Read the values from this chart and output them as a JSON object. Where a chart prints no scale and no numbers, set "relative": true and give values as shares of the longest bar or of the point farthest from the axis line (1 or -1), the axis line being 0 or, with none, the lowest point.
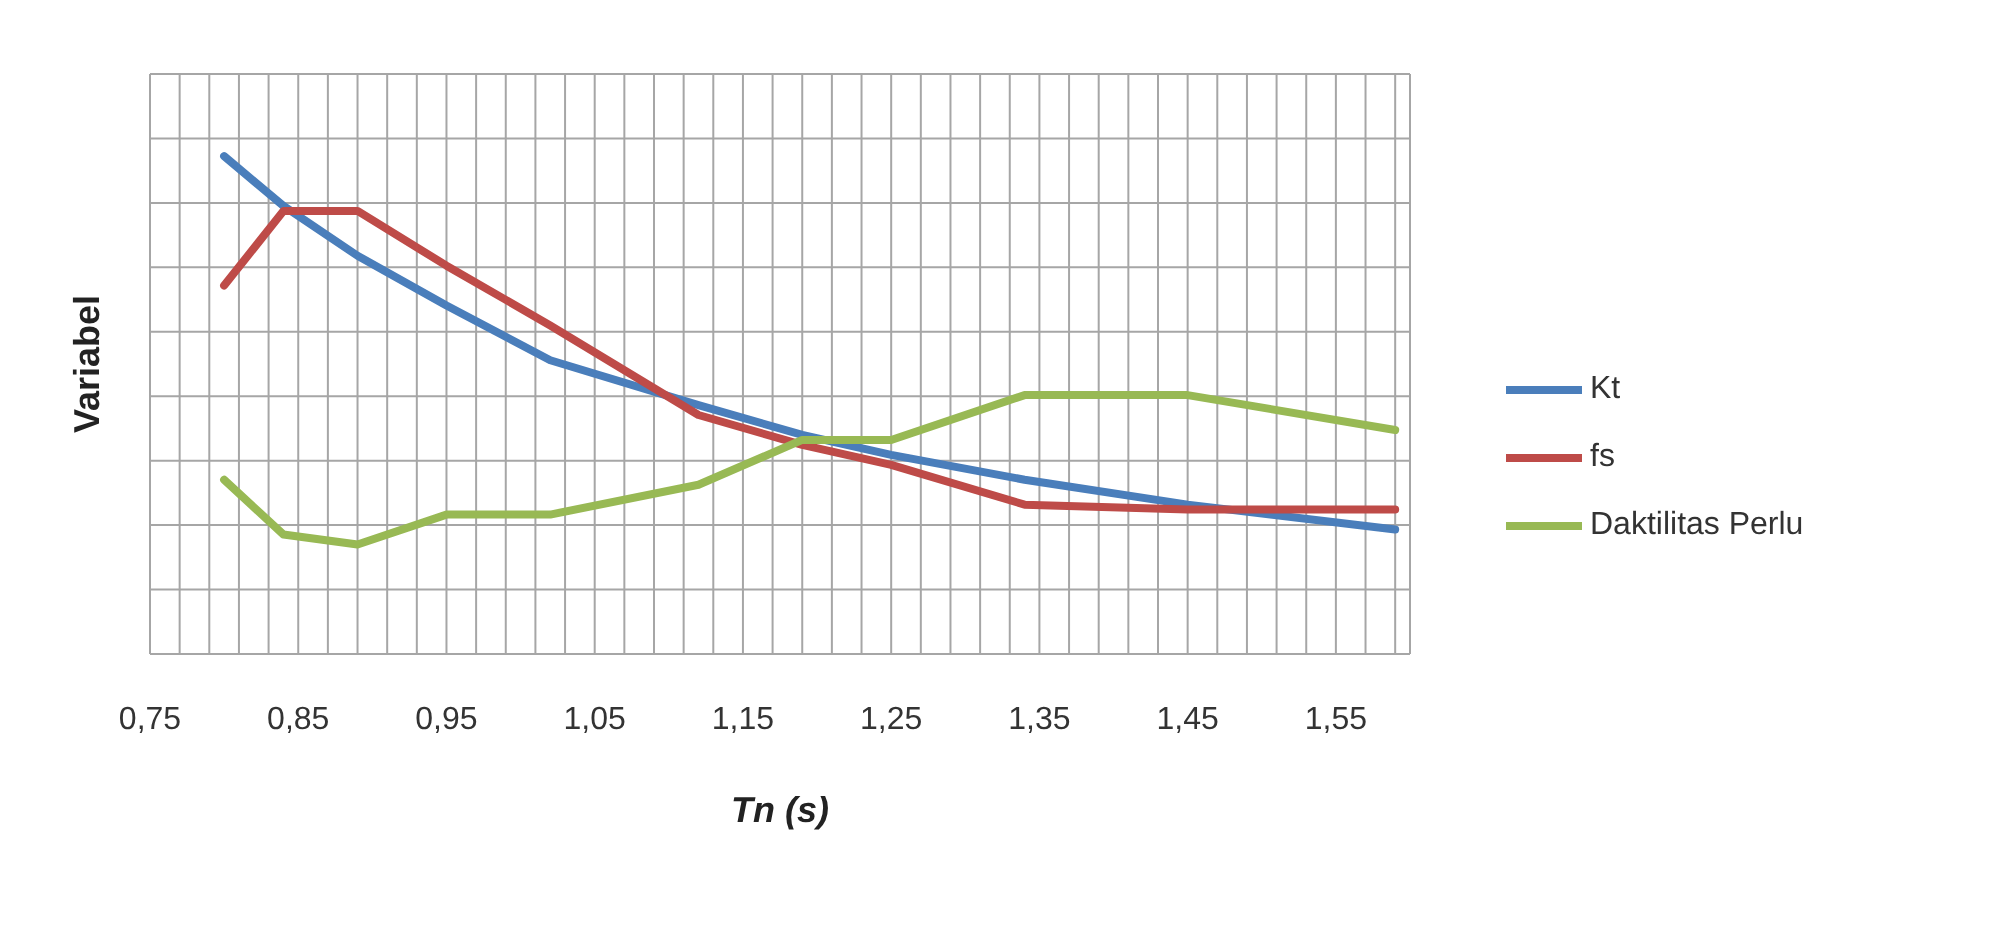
{
  "chart_data": {
    "type": "line",
    "relative": true,
    "xlabel": "Tn (s)",
    "ylabel": "Variabel",
    "x": [
      0.8,
      0.84,
      0.89,
      0.95,
      1.02,
      1.12,
      1.19,
      1.25,
      1.34,
      1.45,
      1.59
    ],
    "xlim": [
      0.75,
      1.6
    ],
    "xticks": [
      {
        "value": 0.75,
        "label": "0,75"
      },
      {
        "value": 0.77,
        "label": null
      },
      {
        "value": 0.79,
        "label": null
      },
      {
        "value": 0.81,
        "label": null
      },
      {
        "value": 0.83,
        "label": null
      },
      {
        "value": 0.85,
        "label": "0,85"
      },
      {
        "value": 0.87,
        "label": null
      },
      {
        "value": 0.89,
        "label": null
      },
      {
        "value": 0.91,
        "label": null
      },
      {
        "value": 0.93,
        "label": null
      },
      {
        "value": 0.95,
        "label": "0,95"
      },
      {
        "value": 0.97,
        "label": null
      },
      {
        "value": 0.99,
        "label": null
      },
      {
        "value": 1.01,
        "label": null
      },
      {
        "value": 1.03,
        "label": null
      },
      {
        "value": 1.05,
        "label": "1,05"
      },
      {
        "value": 1.07,
        "label": null
      },
      {
        "value": 1.09,
        "label": null
      },
      {
        "value": 1.11,
        "label": null
      },
      {
        "value": 1.13,
        "label": null
      },
      {
        "value": 1.15,
        "label": "1,15"
      },
      {
        "value": 1.17,
        "label": null
      },
      {
        "value": 1.19,
        "label": null
      },
      {
        "value": 1.21,
        "label": null
      },
      {
        "value": 1.23,
        "label": null
      },
      {
        "value": 1.25,
        "label": "1,25"
      },
      {
        "value": 1.27,
        "label": null
      },
      {
        "value": 1.29,
        "label": null
      },
      {
        "value": 1.31,
        "label": null
      },
      {
        "value": 1.33,
        "label": null
      },
      {
        "value": 1.35,
        "label": "1,35"
      },
      {
        "value": 1.37,
        "label": null
      },
      {
        "value": 1.39,
        "label": null
      },
      {
        "value": 1.41,
        "label": null
      },
      {
        "value": 1.43,
        "label": null
      },
      {
        "value": 1.45,
        "label": "1,45"
      },
      {
        "value": 1.47,
        "label": null
      },
      {
        "value": 1.49,
        "label": null
      },
      {
        "value": 1.51,
        "label": null
      },
      {
        "value": 1.53,
        "label": null
      },
      {
        "value": 1.55,
        "label": "1,55"
      },
      {
        "value": 1.57,
        "label": null
      },
      {
        "value": 1.59,
        "label": null
      }
    ],
    "series": [
      {
        "name": "Kt",
        "color": "#4a7ebb",
        "values": [
          1.0,
          0.9,
          0.8,
          0.7,
          0.59,
          0.5,
          0.44,
          0.4,
          0.35,
          0.3,
          0.25
        ]
      },
      {
        "name": "fs",
        "color": "#be4b48",
        "values": [
          0.74,
          0.89,
          0.89,
          0.78,
          0.66,
          0.48,
          0.42,
          0.38,
          0.3,
          0.29,
          0.29
        ]
      },
      {
        "name": "Daktilitas Perlu",
        "color": "#98b954",
        "values": [
          0.35,
          0.24,
          0.22,
          0.28,
          0.28,
          0.34,
          0.43,
          0.43,
          0.52,
          0.52,
          0.45
        ]
      }
    ],
    "grid": true,
    "legend": "right",
    "marker": "none",
    "line_style": "solid"
  }
}
